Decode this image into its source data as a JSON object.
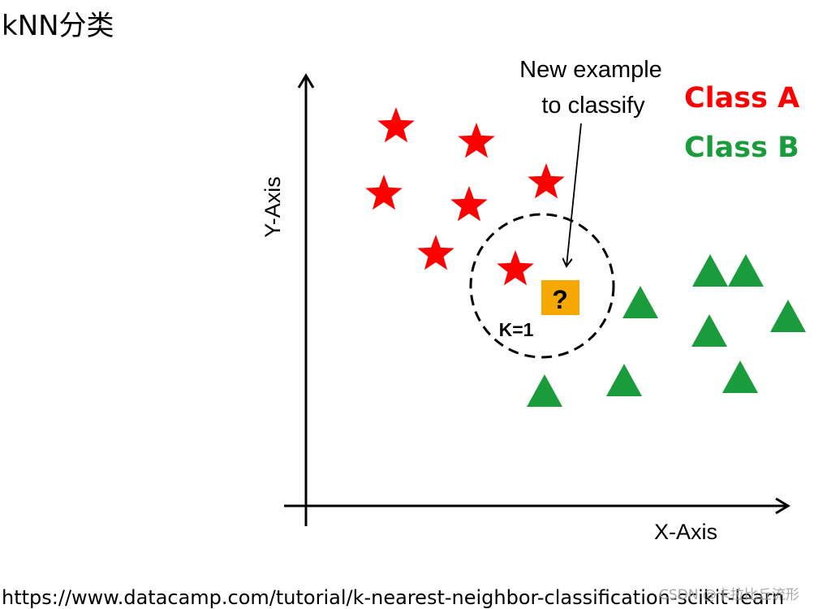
{
  "page": {
    "title": "kNN分类",
    "source_url": "https://www.datacamp.com/tutorial/k-nearest-neighbor-classification-scikit-learn",
    "watermark": "CSDN @卡拉比丘流形"
  },
  "diagram": {
    "x_axis_label": "X-Axis",
    "y_axis_label": "Y-Axis",
    "annotation": "New example\nto classify",
    "annotation_lines": [
      "New example",
      "to classify"
    ],
    "k_label": "K=1",
    "query_symbol": "?",
    "legend": [
      {
        "label": "Class A",
        "color": "#ff0000",
        "marker": "star"
      },
      {
        "label": "Class B",
        "color": "#1a9c3c",
        "marker": "triangle"
      }
    ],
    "colors": {
      "class_a": "#ff0000",
      "class_b": "#1a9c3c",
      "query_fill": "#f5a800",
      "axis": "#000000"
    }
  }
}
